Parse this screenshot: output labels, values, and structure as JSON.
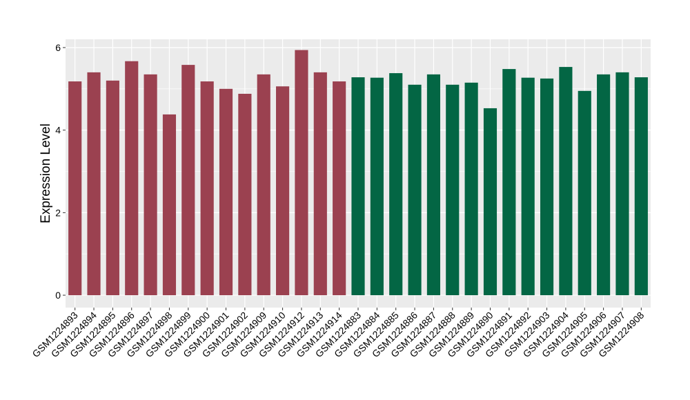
{
  "chart_data": {
    "type": "bar",
    "ylabel": "Expression Level",
    "xlabel": "",
    "ylim": [
      -0.3,
      6.2
    ],
    "yticks": [
      0,
      2,
      4,
      6
    ],
    "grid": true,
    "categories": [
      "GSM1224893",
      "GSM1224894",
      "GSM1224895",
      "GSM1224896",
      "GSM1224897",
      "GSM1224898",
      "GSM1224899",
      "GSM1224900",
      "GSM1224901",
      "GSM1224902",
      "GSM1224909",
      "GSM1224910",
      "GSM1224912",
      "GSM1224913",
      "GSM1224914",
      "GSM1224883",
      "GSM1224884",
      "GSM1224885",
      "GSM1224886",
      "GSM1224887",
      "GSM1224888",
      "GSM1224889",
      "GSM1224890",
      "GSM1224891",
      "GSM1224892",
      "GSM1224903",
      "GSM1224904",
      "GSM1224905",
      "GSM1224906",
      "GSM1224907",
      "GSM1224908"
    ],
    "values": [
      5.18,
      5.4,
      5.2,
      5.67,
      5.35,
      4.38,
      5.58,
      5.18,
      5.0,
      4.88,
      5.35,
      5.06,
      5.94,
      5.4,
      5.18,
      5.28,
      5.27,
      5.38,
      5.1,
      5.35,
      5.1,
      5.15,
      4.53,
      5.48,
      5.27,
      5.25,
      5.53,
      4.95,
      5.35,
      5.4,
      5.28
    ],
    "bar_colors": [
      "#9b4150",
      "#9b4150",
      "#9b4150",
      "#9b4150",
      "#9b4150",
      "#9b4150",
      "#9b4150",
      "#9b4150",
      "#9b4150",
      "#9b4150",
      "#9b4150",
      "#9b4150",
      "#9b4150",
      "#9b4150",
      "#9b4150",
      "#036644",
      "#036644",
      "#036644",
      "#036644",
      "#036644",
      "#036644",
      "#036644",
      "#036644",
      "#036644",
      "#036644",
      "#036644",
      "#036644",
      "#036644",
      "#036644",
      "#036644",
      "#036644"
    ],
    "colors": {
      "panel_background": "#ebebeb",
      "gridline": "#ffffff",
      "axis_text": "#000000",
      "tick_mark": "#333333"
    }
  }
}
